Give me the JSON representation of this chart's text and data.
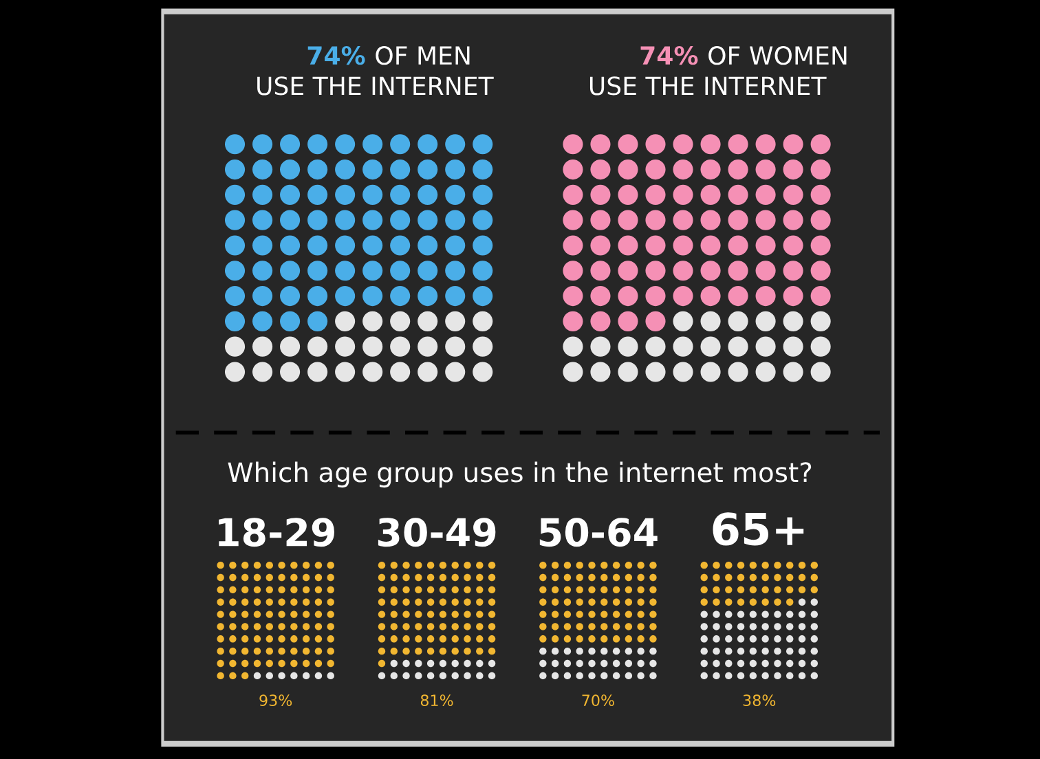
{
  "chart_data": [
    {
      "type": "other",
      "title": "OF MEN USE THE INTERNET",
      "values": [
        74
      ],
      "value_labels": [
        "74%"
      ],
      "colors": [
        "#4aaee8"
      ]
    },
    {
      "type": "other",
      "title": "OF WOMEN USE THE INTERNET",
      "values": [
        74
      ],
      "value_labels": [
        "74%"
      ],
      "colors": [
        "#f590b5"
      ]
    },
    {
      "type": "other",
      "title": "Which age group uses in the internet most?",
      "categories": [
        "18-29",
        "30-49",
        "50-64",
        "65+"
      ],
      "values": [
        93,
        81,
        70,
        38
      ],
      "value_labels": [
        "93%",
        "81%",
        "70%",
        "38%"
      ],
      "colors": [
        "#f2b731",
        "#f2b731",
        "#f2b731",
        "#f2b731"
      ]
    }
  ]
}
